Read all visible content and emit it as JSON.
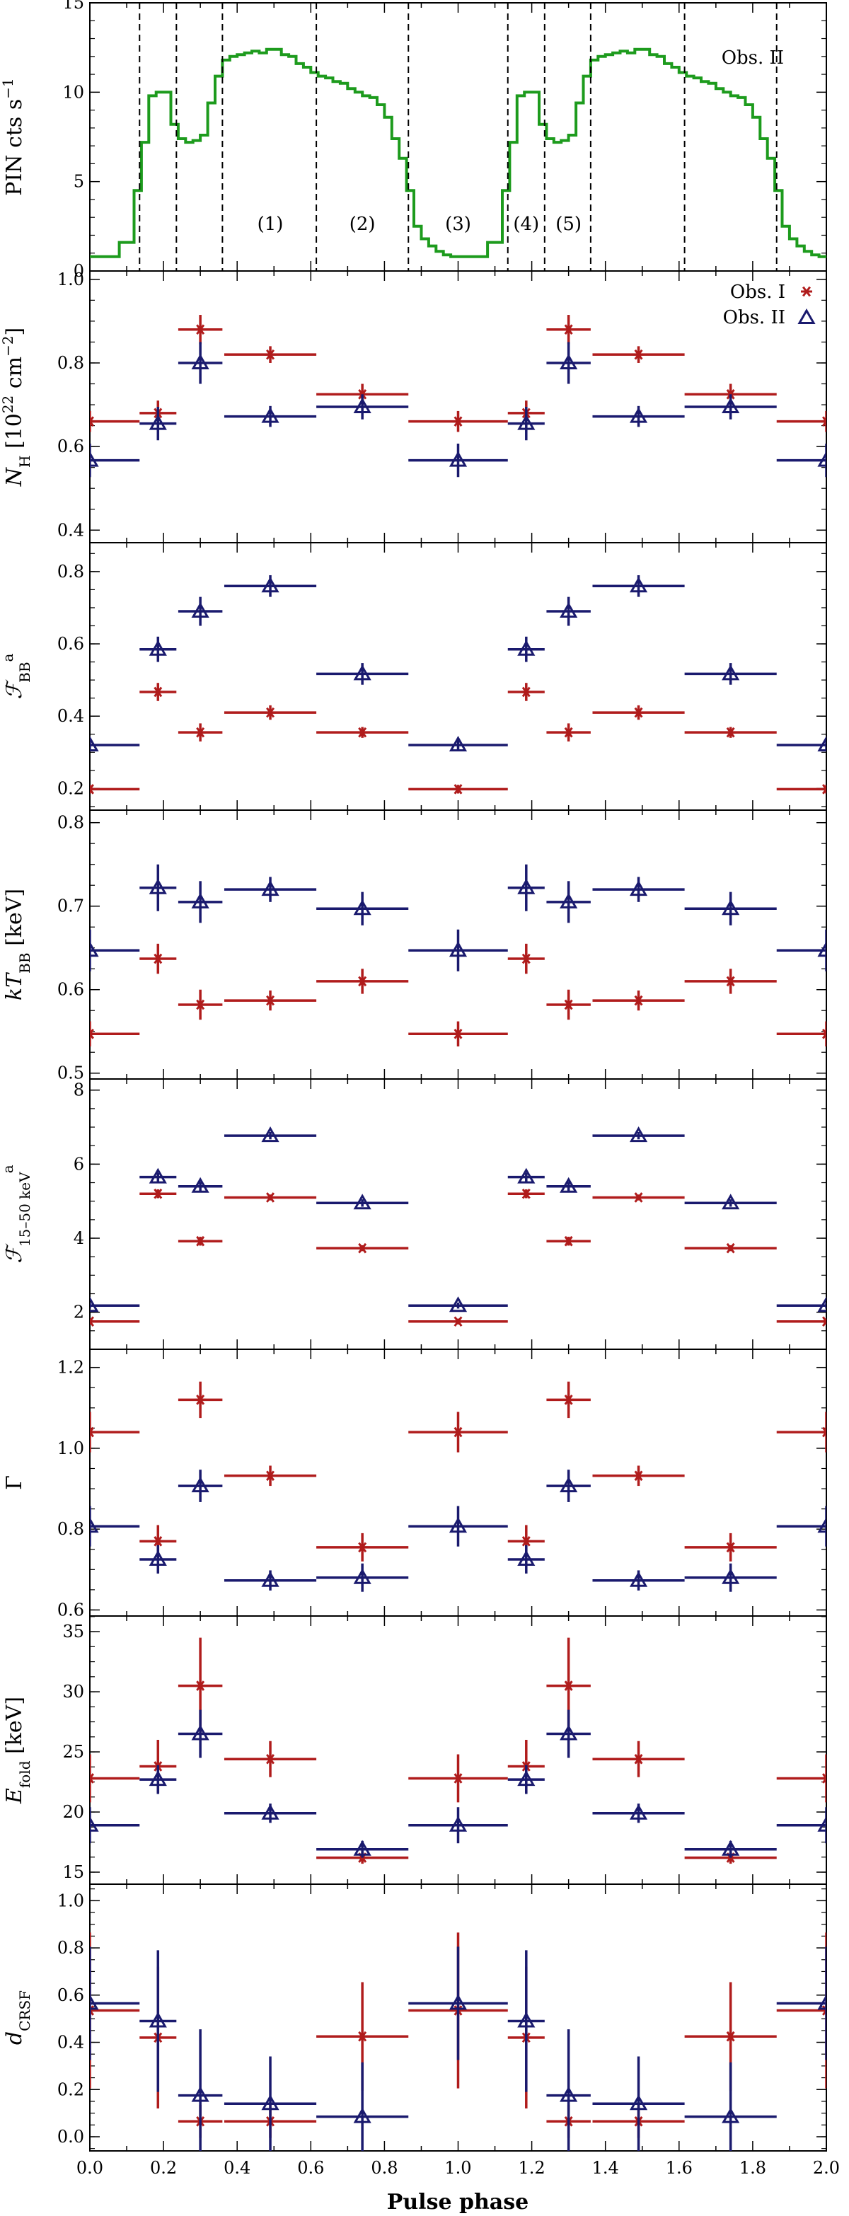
{
  "chart_data": {
    "type": "multi-panel errorbar plot",
    "xlabel": "Pulse phase",
    "xlim": [
      0,
      2
    ],
    "xticks": [
      "0.0",
      "0.2",
      "0.4",
      "0.6",
      "0.8",
      "1.0",
      "1.2",
      "1.4",
      "1.6",
      "1.8",
      "2.0"
    ],
    "colors": {
      "obs1": "#b01c1c",
      "obs2": "#1a1a6e",
      "pin": "#1d9b1d",
      "axes": "#000000"
    },
    "pin": {
      "ylabel": "PIN cts s⁻¹",
      "ylim": [
        0,
        15
      ],
      "yticks": [
        "0",
        "5",
        "10",
        "15"
      ],
      "profile_phase": [
        0.0,
        0.04,
        0.08,
        0.12,
        0.14,
        0.16,
        0.18,
        0.2,
        0.22,
        0.24,
        0.26,
        0.28,
        0.3,
        0.32,
        0.34,
        0.36,
        0.38,
        0.4,
        0.42,
        0.44,
        0.46,
        0.48,
        0.5,
        0.52,
        0.54,
        0.56,
        0.58,
        0.6,
        0.62,
        0.64,
        0.66,
        0.68,
        0.7,
        0.72,
        0.74,
        0.76,
        0.78,
        0.8,
        0.82,
        0.84,
        0.86,
        0.88,
        0.9,
        0.92,
        0.94,
        0.96,
        0.98,
        1.0
      ],
      "profile_rate": [
        0.8,
        0.8,
        1.6,
        4.5,
        7.2,
        9.8,
        10.0,
        10.0,
        8.2,
        7.4,
        7.2,
        7.3,
        7.6,
        9.4,
        10.9,
        11.8,
        12.0,
        12.1,
        12.2,
        12.3,
        12.2,
        12.4,
        12.4,
        12.1,
        12.0,
        11.6,
        11.4,
        11.1,
        10.9,
        10.8,
        10.6,
        10.5,
        10.2,
        10.0,
        9.8,
        9.7,
        9.3,
        8.6,
        7.4,
        6.3,
        4.5,
        2.5,
        1.8,
        1.4,
        1.1,
        0.9,
        0.8,
        0.8
      ],
      "dividers": [
        0.135,
        0.235,
        0.36,
        0.615,
        0.865,
        1.135,
        1.235,
        1.36,
        1.615,
        1.865
      ],
      "region_labels": [
        "(1)",
        "(2)",
        "(3)",
        "(4)",
        "(5)"
      ],
      "region_x": [
        0.49,
        0.74,
        1.0,
        1.185,
        1.3
      ],
      "obs_label": "Obs. II"
    },
    "legend": {
      "position": "top-right",
      "obs1": "Obs. I",
      "obs2": "Obs. II"
    },
    "bins": {
      "centers": [
        0.0,
        0.185,
        0.3,
        0.49,
        0.74,
        1.0,
        1.185,
        1.3,
        1.49,
        1.74,
        2.0
      ],
      "halfwidths": [
        0.135,
        0.05,
        0.06,
        0.125,
        0.125,
        0.135,
        0.05,
        0.06,
        0.125,
        0.125,
        0.135
      ]
    },
    "panels": [
      {
        "id": "nh",
        "ylabel": "N_H [10²² cm⁻²]",
        "ylim": [
          0.37,
          1.02
        ],
        "yticks": [
          "0.4",
          "0.6",
          "0.8",
          "1.0"
        ],
        "ytick_values": [
          0.4,
          0.6,
          0.8,
          1.0
        ],
        "obs1": [
          0.66,
          0.68,
          0.88,
          0.82,
          0.725,
          0.66,
          0.68,
          0.88,
          0.82,
          0.725,
          0.66
        ],
        "obs1_err": [
          0.025,
          0.03,
          0.035,
          0.02,
          0.025,
          0.025,
          0.03,
          0.035,
          0.02,
          0.025,
          0.025
        ],
        "obs2": [
          0.567,
          0.655,
          0.8,
          0.672,
          0.695,
          0.567,
          0.655,
          0.8,
          0.672,
          0.695,
          0.567
        ],
        "obs2_err": [
          0.04,
          0.04,
          0.05,
          0.025,
          0.03,
          0.04,
          0.04,
          0.05,
          0.025,
          0.03,
          0.04
        ]
      },
      {
        "id": "fbb",
        "ylabel": "F_BB^a",
        "ylim": [
          0.14,
          0.88
        ],
        "yticks": [
          "0.2",
          "0.4",
          "0.6",
          "0.8"
        ],
        "ytick_values": [
          0.2,
          0.4,
          0.6,
          0.8
        ],
        "obs1": [
          0.198,
          0.467,
          0.355,
          0.41,
          0.355,
          0.198,
          0.467,
          0.355,
          0.41,
          0.355,
          0.198
        ],
        "obs1_err": [
          0.012,
          0.025,
          0.025,
          0.02,
          0.015,
          0.012,
          0.025,
          0.025,
          0.02,
          0.015,
          0.012
        ],
        "obs2": [
          0.32,
          0.585,
          0.69,
          0.76,
          0.517,
          0.32,
          0.585,
          0.69,
          0.76,
          0.517,
          0.32
        ],
        "obs2_err": [
          0.015,
          0.035,
          0.04,
          0.03,
          0.03,
          0.015,
          0.035,
          0.04,
          0.03,
          0.03,
          0.015
        ]
      },
      {
        "id": "kt",
        "ylabel": "kT_BB [keV]",
        "ylim": [
          0.493,
          0.815
        ],
        "yticks": [
          "0.5",
          "0.6",
          "0.7",
          "0.8"
        ],
        "ytick_values": [
          0.5,
          0.6,
          0.7,
          0.8
        ],
        "obs1": [
          0.547,
          0.637,
          0.582,
          0.587,
          0.61,
          0.547,
          0.637,
          0.582,
          0.587,
          0.61,
          0.547
        ],
        "obs1_err": [
          0.015,
          0.018,
          0.018,
          0.012,
          0.015,
          0.015,
          0.018,
          0.018,
          0.012,
          0.015,
          0.015
        ],
        "obs2": [
          0.647,
          0.722,
          0.705,
          0.72,
          0.697,
          0.647,
          0.722,
          0.705,
          0.72,
          0.697,
          0.647
        ],
        "obs2_err": [
          0.025,
          0.028,
          0.025,
          0.015,
          0.02,
          0.025,
          0.028,
          0.025,
          0.015,
          0.02,
          0.025
        ]
      },
      {
        "id": "f1550",
        "ylabel": "F_15–50 keV^a",
        "ylim": [
          1.0,
          8.3
        ],
        "yticks": [
          "2",
          "4",
          "6",
          "8"
        ],
        "ytick_values": [
          2,
          4,
          6,
          8
        ],
        "obs1": [
          1.75,
          5.2,
          3.92,
          5.1,
          3.73,
          1.75,
          5.2,
          3.92,
          5.1,
          3.73,
          1.75
        ],
        "obs1_err": [
          0.08,
          0.12,
          0.12,
          0.08,
          0.08,
          0.08,
          0.12,
          0.12,
          0.08,
          0.08,
          0.08
        ],
        "obs2": [
          2.18,
          5.65,
          5.4,
          6.77,
          4.95,
          2.18,
          5.65,
          5.4,
          6.77,
          4.95,
          2.18
        ],
        "obs2_err": [
          0.08,
          0.12,
          0.12,
          0.1,
          0.1,
          0.08,
          0.12,
          0.12,
          0.1,
          0.1,
          0.08
        ]
      },
      {
        "id": "gamma",
        "ylabel": "Γ",
        "ylim": [
          0.585,
          1.245
        ],
        "yticks": [
          "0.6",
          "0.8",
          "1.0",
          "1.2"
        ],
        "ytick_values": [
          0.6,
          0.8,
          1.0,
          1.2
        ],
        "obs1": [
          1.04,
          0.77,
          1.12,
          0.932,
          0.755,
          1.04,
          0.77,
          1.12,
          0.932,
          0.755,
          1.04
        ],
        "obs1_err": [
          0.05,
          0.04,
          0.045,
          0.025,
          0.035,
          0.05,
          0.04,
          0.045,
          0.025,
          0.035,
          0.05
        ],
        "obs2": [
          0.807,
          0.725,
          0.907,
          0.673,
          0.68,
          0.807,
          0.725,
          0.907,
          0.673,
          0.68,
          0.807
        ],
        "obs2_err": [
          0.05,
          0.035,
          0.04,
          0.025,
          0.035,
          0.05,
          0.035,
          0.04,
          0.025,
          0.035,
          0.05
        ]
      },
      {
        "id": "efold",
        "ylabel": "E_fold [keV]",
        "ylim": [
          14.0,
          36.3
        ],
        "yticks": [
          "15",
          "20",
          "25",
          "30",
          "35"
        ],
        "ytick_values": [
          15,
          20,
          25,
          30,
          35
        ],
        "obs1": [
          22.8,
          23.8,
          30.5,
          24.4,
          16.2,
          22.8,
          23.8,
          30.5,
          24.4,
          16.2,
          22.8
        ],
        "obs1_err": [
          2.0,
          2.2,
          4.0,
          1.5,
          0.5,
          2.0,
          2.2,
          4.0,
          1.5,
          0.5,
          2.0
        ],
        "obs2": [
          18.9,
          22.7,
          26.5,
          19.9,
          16.9,
          18.9,
          22.7,
          26.5,
          19.9,
          16.9,
          18.9
        ],
        "obs2_err": [
          1.5,
          1.2,
          2.0,
          0.8,
          0.7,
          1.5,
          1.2,
          2.0,
          0.8,
          0.7,
          1.5
        ]
      },
      {
        "id": "dcrsf",
        "ylabel": "d_CRSF",
        "ylim": [
          -0.06,
          1.07
        ],
        "yticks": [
          "0.0",
          "0.2",
          "0.4",
          "0.6",
          "0.8",
          "1.0"
        ],
        "ytick_values": [
          0.0,
          0.2,
          0.4,
          0.6,
          0.8,
          1.0
        ],
        "obs1": [
          0.535,
          0.42,
          0.065,
          0.065,
          0.425,
          0.535,
          0.42,
          0.065,
          0.065,
          0.425,
          0.535
        ],
        "obs1_err": [
          0.33,
          0.3,
          0.07,
          0.07,
          0.23,
          0.33,
          0.3,
          0.07,
          0.07,
          0.23,
          0.33
        ],
        "obs2": [
          0.565,
          0.49,
          0.175,
          0.14,
          0.085,
          0.565,
          0.49,
          0.175,
          0.14,
          0.085,
          0.565
        ],
        "obs2_err": [
          0.24,
          0.3,
          0.28,
          0.2,
          0.23,
          0.24,
          0.3,
          0.28,
          0.2,
          0.23,
          0.24
        ]
      }
    ]
  }
}
